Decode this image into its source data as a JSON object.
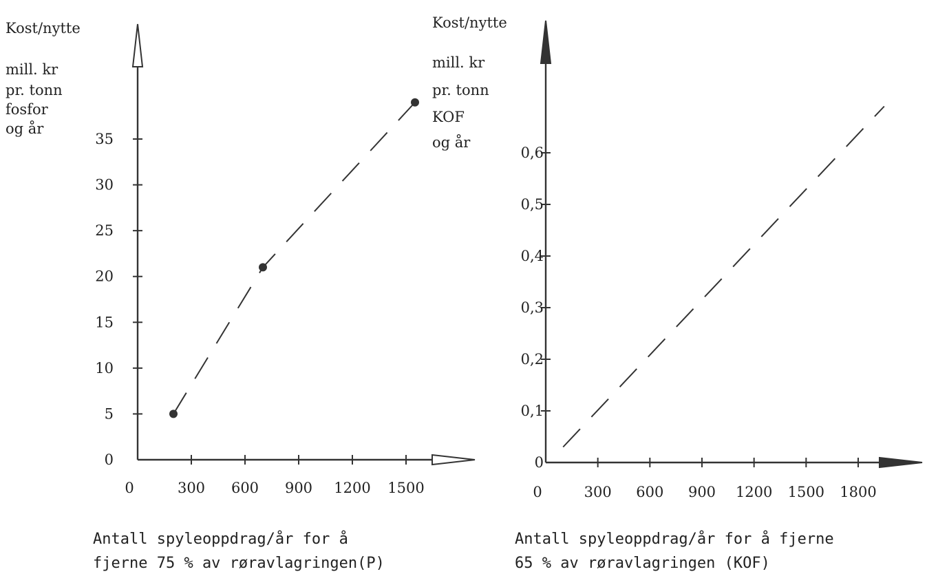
{
  "chart_data": [
    {
      "type": "line",
      "ylabel": [
        "Kost/nytte",
        "mill. kr",
        "pr. tonn",
        "fosfor",
        "og år"
      ],
      "xlabel": [
        "Antall spyleoppdrag/år for å",
        "fjerne 75 % av røravlagringen(P)"
      ],
      "x_ticks": [
        0,
        300,
        600,
        900,
        1200,
        1500
      ],
      "y_ticks": [
        0,
        5,
        10,
        15,
        20,
        25,
        30,
        35
      ],
      "xlim": [
        0,
        1700
      ],
      "ylim": [
        0,
        40
      ],
      "grid": false,
      "series": [
        {
          "style": "dashed",
          "marker": "dot",
          "x": [
            200,
            700,
            1550
          ],
          "y": [
            5,
            21,
            39
          ]
        }
      ]
    },
    {
      "type": "line",
      "ylabel": [
        "Kost/nytte",
        "mill. kr",
        "pr. tonn",
        "KOF",
        "og år"
      ],
      "xlabel": [
        "Antall spyleoppdrag/år for å fjerne",
        "65 % av røravlagringen    (KOF)"
      ],
      "x_ticks": [
        0,
        300,
        600,
        900,
        1200,
        1500,
        1800
      ],
      "x_tick_labels": [
        "0",
        "300",
        "600",
        "900",
        "1200",
        "1500",
        "1800"
      ],
      "y_ticks": [
        0,
        0.1,
        0.2,
        0.3,
        0.4,
        0.5,
        0.6
      ],
      "y_tick_labels": [
        "0",
        "0,1",
        "0,2",
        "0,3",
        "0,4",
        "0,5",
        "0,6"
      ],
      "xlim": [
        0,
        2000
      ],
      "ylim": [
        0,
        0.75
      ],
      "grid": false,
      "series": [
        {
          "style": "dashed",
          "marker": "none",
          "x": [
            100,
            1950
          ],
          "y": [
            0.03,
            0.69
          ]
        }
      ]
    }
  ]
}
